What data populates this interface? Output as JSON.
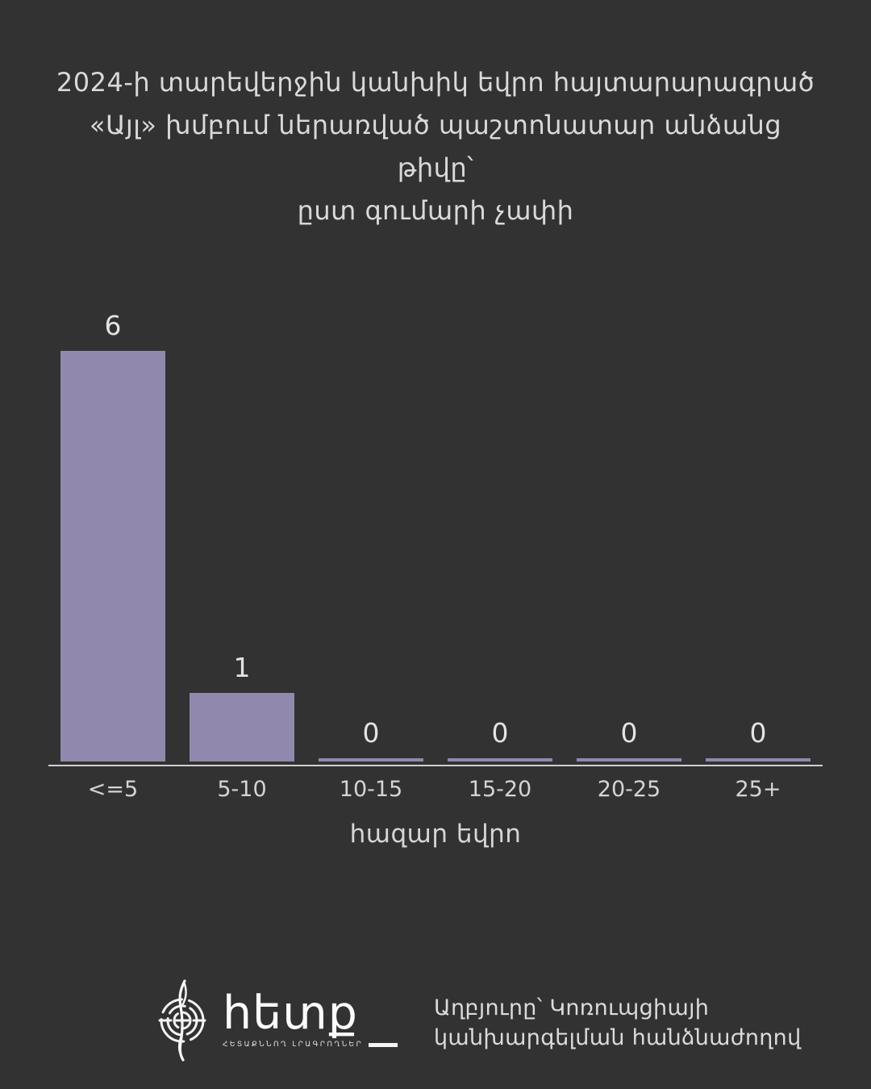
{
  "title": {
    "lines": [
      "2024-ի տարեվերջին կանխիկ եվրո հայտարարագրած",
      "«Այլ» խմբում ներառված պաշտոնատար անձանց թիվը՝",
      "ըստ գումարի չափի"
    ]
  },
  "chart_data": {
    "type": "bar",
    "categories": [
      "<=5",
      "5-10",
      "10-15",
      "15-20",
      "20-25",
      "25+"
    ],
    "values": [
      6,
      1,
      0,
      0,
      0,
      0
    ],
    "value_labels": [
      "6",
      "1",
      "0",
      "0",
      "0",
      "0"
    ],
    "title": "2024-ի տարեվերջին կանխիկ եվրո հայտարարագրած «Այլ» խմբում ներառված պաշտոնատար անձանց թիվը՝ ըստ գումարի չափի",
    "xlabel": "հազար եվրո",
    "ylabel": "",
    "ylim": [
      0,
      6
    ],
    "grid": false,
    "legend": false,
    "bar_color": "#9189ad",
    "axis_line_color": "#cfcfcf",
    "background_color": "#323232",
    "label_color": "#e3e3e3"
  },
  "footer": {
    "logo": {
      "icon": "hetq-fingerprint-pen-icon",
      "wordmark": "հետք",
      "tagline": "ՀԵՏԱՔՆՆՈՂ ԼՐԱԳՐՈՂՆԵՐ"
    },
    "source_lines": [
      "Աղբյուրը՝ Կոռուպցիայի",
      "կանխարգելման հանձնաժողով"
    ]
  }
}
